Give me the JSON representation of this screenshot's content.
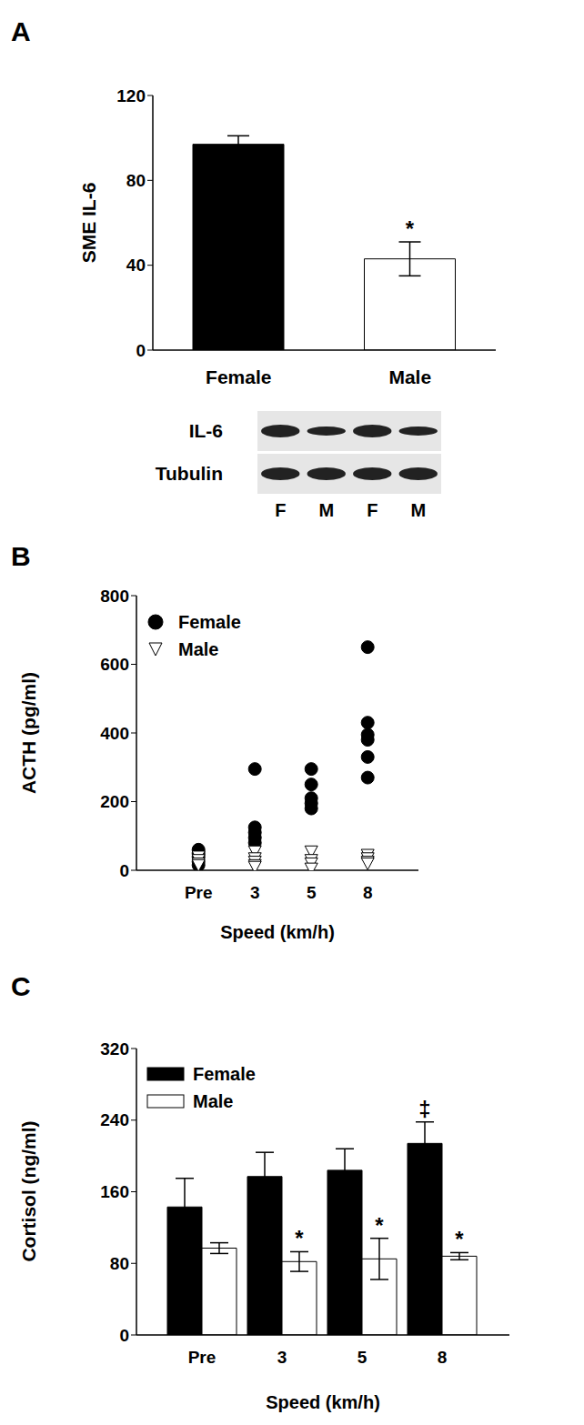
{
  "chart_data": [
    {
      "type": "bar",
      "title": "A",
      "ylabel": "SME IL-6",
      "categories": [
        "Female",
        "Male"
      ],
      "values": [
        97,
        43
      ],
      "errors": [
        4,
        8
      ],
      "colors": [
        "#000000",
        "#ffffff"
      ],
      "annotations": [
        null,
        "*"
      ],
      "ylim": [
        0,
        120
      ],
      "yticks": [
        0,
        40,
        80,
        120
      ],
      "blot": {
        "rows": [
          "IL-6",
          "Tubulin"
        ],
        "lanes": [
          "F",
          "M",
          "F",
          "M"
        ]
      }
    },
    {
      "type": "scatter",
      "title": "B",
      "xlabel": "Speed (km/h)",
      "ylabel": "ACTH (pg/ml)",
      "categories": [
        "Pre",
        "3",
        "5",
        "8"
      ],
      "ylim": [
        0,
        800
      ],
      "yticks": [
        0,
        200,
        400,
        600,
        800
      ],
      "legend": "upper left",
      "series": [
        {
          "name": "Female",
          "color": "#000000",
          "marker": "circle",
          "x": [
            "Pre",
            "Pre",
            "Pre",
            "Pre",
            "Pre",
            "3",
            "3",
            "3",
            "3",
            "3",
            "5",
            "5",
            "5",
            "5",
            "5",
            "8",
            "8",
            "8",
            "8",
            "8",
            "8"
          ],
          "values": [
            60,
            50,
            40,
            25,
            15,
            295,
            125,
            110,
            95,
            80,
            295,
            250,
            210,
            195,
            180,
            650,
            430,
            395,
            380,
            330,
            270
          ]
        },
        {
          "name": "Male",
          "color": "#ffffff",
          "marker": "triangle-down",
          "x": [
            "Pre",
            "Pre",
            "Pre",
            "Pre",
            "3",
            "3",
            "3",
            "3",
            "3",
            "5",
            "5",
            "5",
            "5",
            "8",
            "8",
            "8",
            "8"
          ],
          "values": [
            40,
            30,
            20,
            15,
            55,
            35,
            25,
            15,
            10,
            55,
            30,
            20,
            5,
            45,
            35,
            25,
            20
          ]
        }
      ]
    },
    {
      "type": "bar",
      "title": "C",
      "xlabel": "Speed (km/h)",
      "ylabel": "Cortisol (ng/ml)",
      "categories": [
        "Pre",
        "3",
        "5",
        "8"
      ],
      "ylim": [
        0,
        320
      ],
      "yticks": [
        0,
        80,
        160,
        240,
        320
      ],
      "legend": "upper left",
      "series": [
        {
          "name": "Female",
          "color": "#000000",
          "values": [
            143,
            177,
            184,
            214
          ],
          "errors": [
            32,
            27,
            24,
            24
          ],
          "annotations": [
            null,
            null,
            null,
            "‡"
          ]
        },
        {
          "name": "Male",
          "color": "#ffffff",
          "values": [
            97,
            82,
            85,
            88
          ],
          "errors": [
            6,
            11,
            23,
            4
          ],
          "annotations": [
            null,
            "*",
            "*",
            "*"
          ]
        }
      ]
    }
  ]
}
